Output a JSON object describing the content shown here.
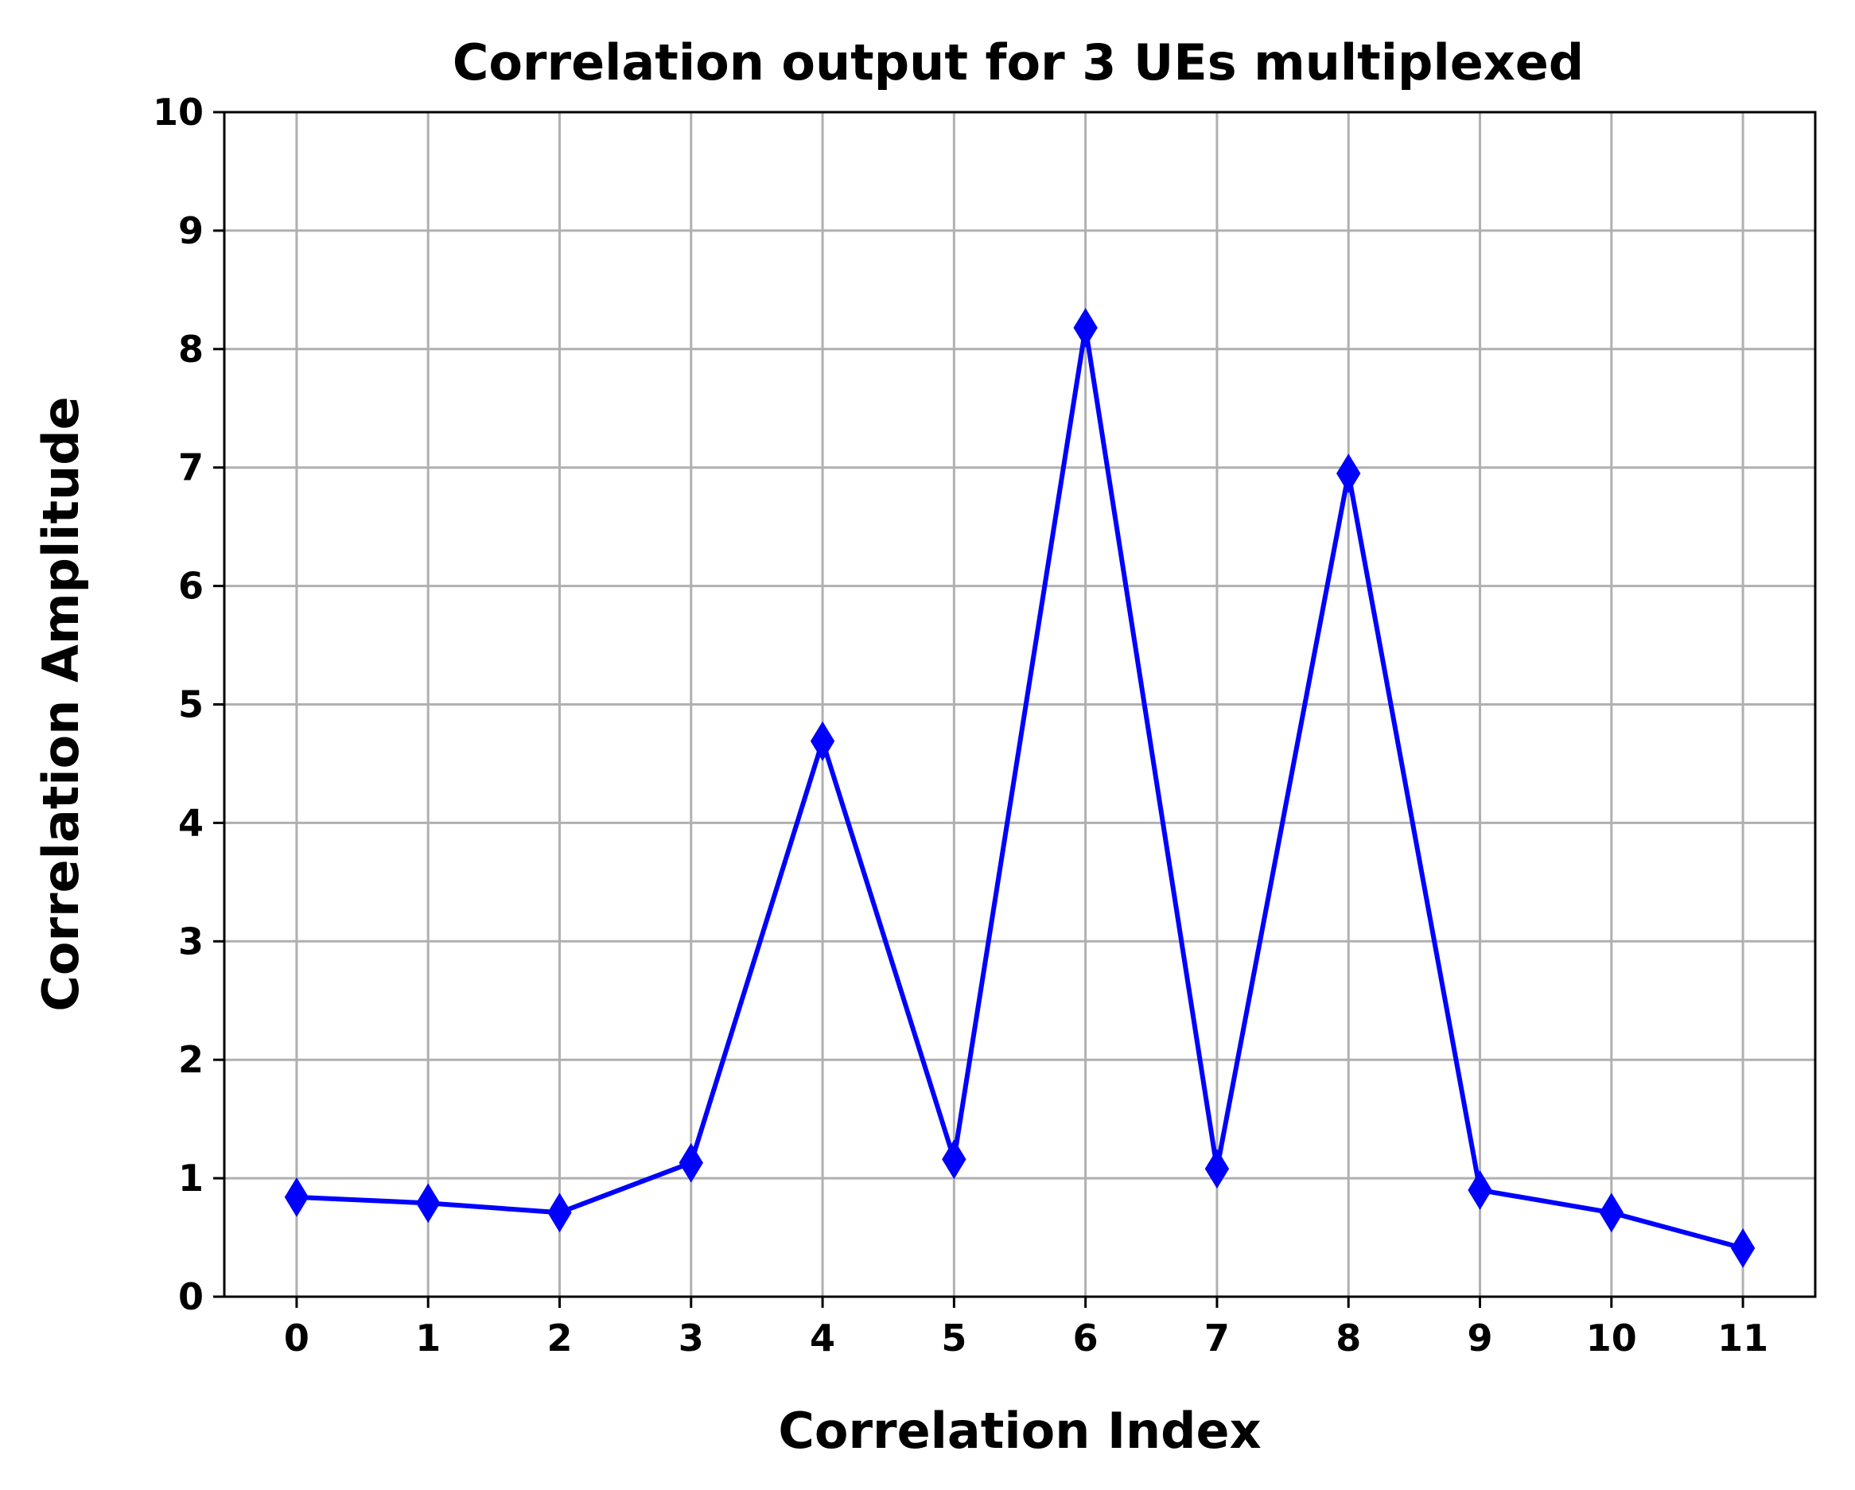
{
  "chart_data": {
    "type": "line",
    "title": "Correlation output for 3 UEs multiplexed",
    "xlabel": "Correlation Index",
    "ylabel": "Correlation Amplitude",
    "x": [
      0,
      1,
      2,
      3,
      4,
      5,
      6,
      7,
      8,
      9,
      10,
      11
    ],
    "xticks": [
      "0",
      "1",
      "2",
      "3",
      "4",
      "5",
      "6",
      "7",
      "8",
      "9",
      "10",
      "11"
    ],
    "yticks": [
      "0",
      "1",
      "2",
      "3",
      "4",
      "5",
      "6",
      "7",
      "8",
      "9",
      "10"
    ],
    "xlim": [
      -0.55,
      11.55
    ],
    "ylim": [
      0,
      10
    ],
    "grid": true,
    "series": [
      {
        "values": [
          0.84,
          0.79,
          0.71,
          1.13,
          4.69,
          1.16,
          8.18,
          1.08,
          6.95,
          0.9,
          0.71,
          0.41
        ],
        "color": "#0000ff",
        "marker": "diamond"
      }
    ]
  }
}
